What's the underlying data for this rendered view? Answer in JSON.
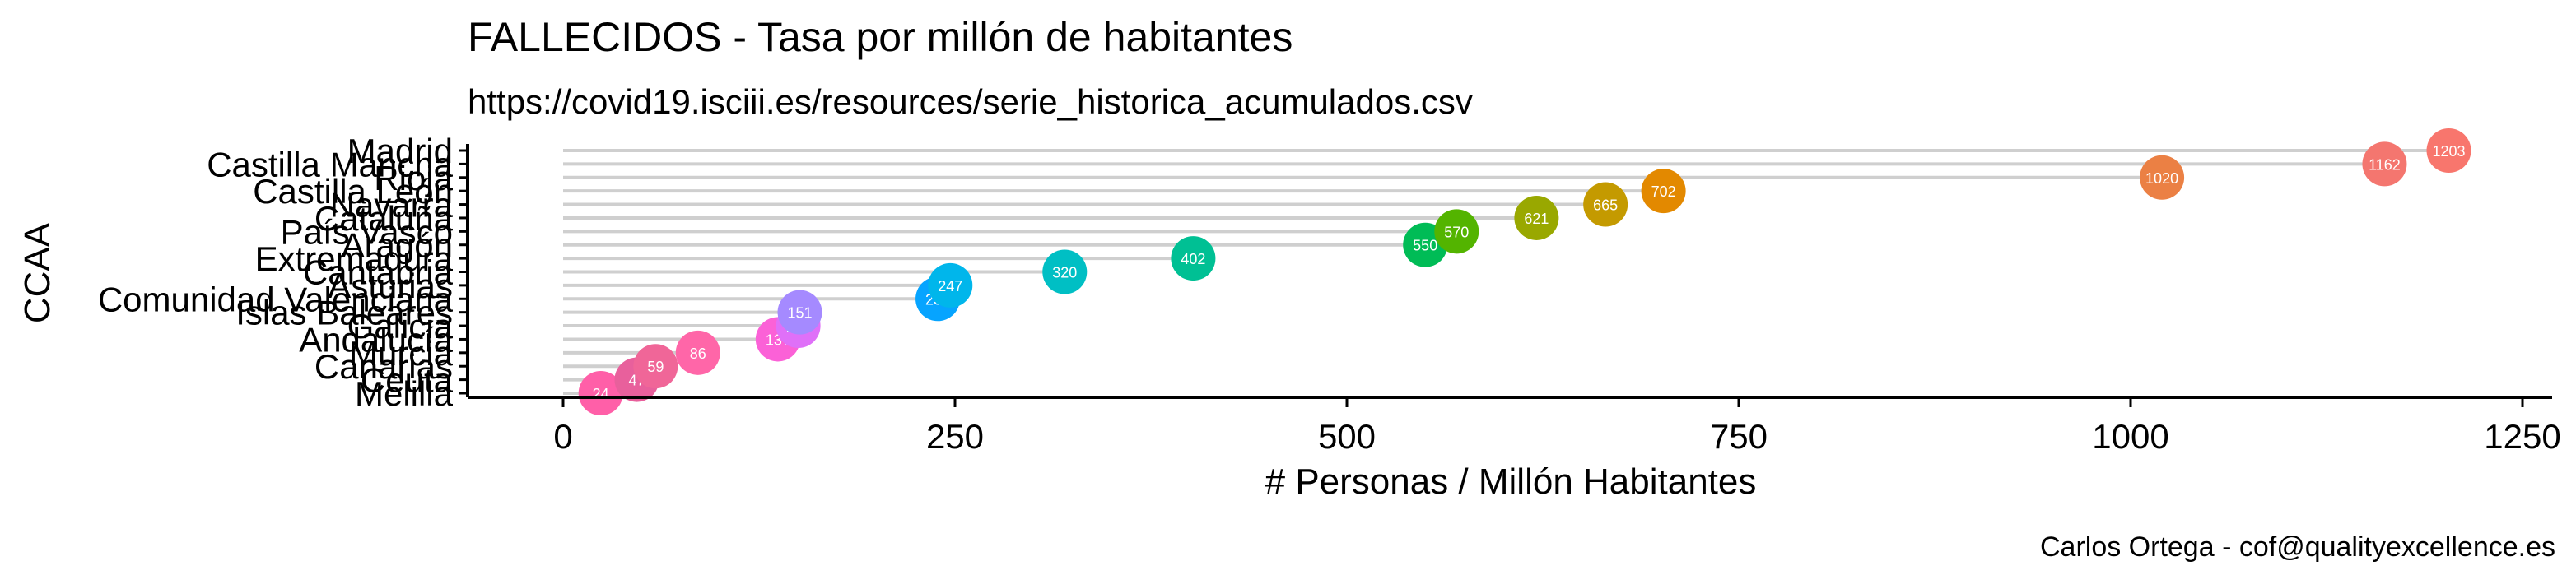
{
  "chart_data": {
    "type": "dot",
    "title": "FALLECIDOS - Tasa por millón de habitantes",
    "subtitle": "https://covid19.isciii.es/resources/serie_historica_acumulados.csv",
    "caption": "Carlos Ortega - cof@qualityexcellence.es",
    "xlabel": "# Personas / Millón Habitantes",
    "ylabel": "CCAA",
    "xlim": [
      0,
      1250
    ],
    "xticks": [
      0,
      250,
      500,
      750,
      1000,
      1250
    ],
    "xtick_labels": [
      "0",
      "250",
      "500",
      "750",
      "1000",
      "1250"
    ],
    "grid": "horizontal segments from 0 to each value",
    "categories": [
      "Madrid",
      "Castilla Mancha",
      "Rioja",
      "Castilla León",
      "Navarra",
      "Cataluña",
      "País Vasco",
      "Aragón",
      "Extremadura",
      "Cantabria",
      "Asturias",
      "Comunidad Valenciana",
      "Islas Baleares",
      "Galicia",
      "Andalucía",
      "Murcia",
      "Canarias",
      "Ceuta",
      "Melilla"
    ],
    "values": [
      1203,
      1162,
      1020,
      702,
      665,
      621,
      570,
      550,
      402,
      320,
      247,
      239,
      151,
      150,
      137,
      86,
      59,
      47,
      24
    ],
    "colors": [
      "#F8766D",
      "#F4766F",
      "#EB8044",
      "#E38900",
      "#C49A00",
      "#99A800",
      "#53B400",
      "#00BC56",
      "#00C094",
      "#00BFC4",
      "#00B6EB",
      "#06A4FF",
      "#A58AFF",
      "#DF70F8",
      "#FB61D7",
      "#FF66A8",
      "#F06698",
      "#E8609C",
      "#FF5FA8"
    ]
  }
}
